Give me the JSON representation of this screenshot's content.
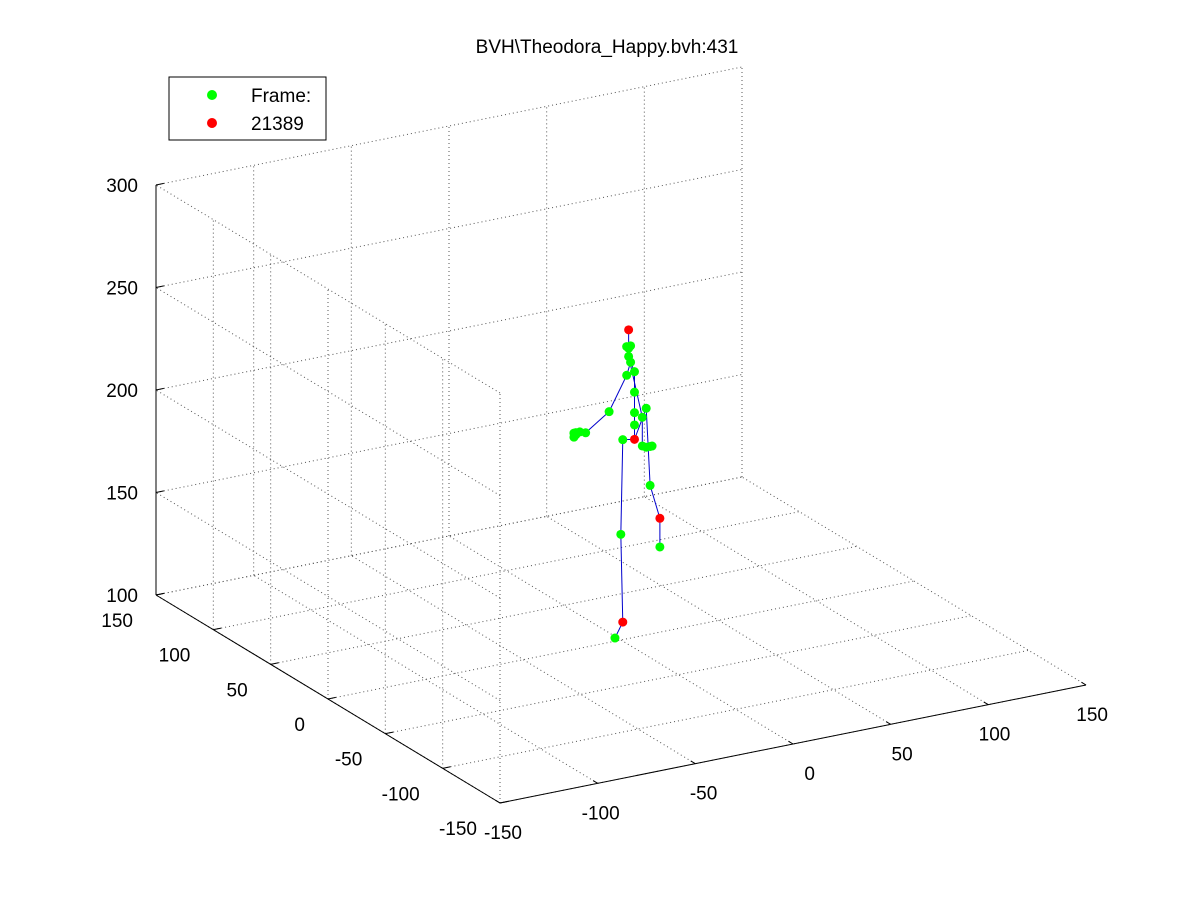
{
  "chart_data": {
    "type": "scatter",
    "title": "BVH\\Theodora_Happy.bvh:431",
    "legend": {
      "placement": "top-left",
      "entries": [
        {
          "label": "Frame:",
          "color": "#00ff00"
        },
        {
          "label": "21389",
          "color": "#ff0000"
        }
      ]
    },
    "z_ticks": [
      "100",
      "150",
      "200",
      "250",
      "300"
    ],
    "y_ticks": [
      "150",
      "100",
      "50",
      "0",
      "-50",
      "-100",
      "-150"
    ],
    "x_ticks": [
      "-150",
      "-100",
      "-50",
      "0",
      "50",
      "100",
      "150"
    ],
    "axis_ranges": {
      "x": [
        -150,
        150
      ],
      "y": [
        -150,
        150
      ],
      "z": [
        100,
        300
      ]
    },
    "grid": true,
    "colors": {
      "joint": "#00ff00",
      "end_site": "#ff0000",
      "bone": "#0000cc",
      "grid": "#555555"
    },
    "joints": [
      {
        "id": "head_top",
        "x": 45,
        "y": 70,
        "z": 219,
        "type": "end_site"
      },
      {
        "id": "head",
        "x": 45,
        "y": 70,
        "z": 210,
        "type": "joint"
      },
      {
        "id": "head_l",
        "x": 44,
        "y": 70,
        "z": 211,
        "type": "joint"
      },
      {
        "id": "head_r",
        "x": 46,
        "y": 70,
        "z": 211,
        "type": "joint"
      },
      {
        "id": "neck2",
        "x": 45,
        "y": 70,
        "z": 206,
        "type": "joint"
      },
      {
        "id": "neck",
        "x": 46,
        "y": 70,
        "z": 203,
        "type": "joint"
      },
      {
        "id": "chest3",
        "x": 48,
        "y": 70,
        "z": 198,
        "type": "joint"
      },
      {
        "id": "l_collar",
        "x": 44,
        "y": 70,
        "z": 197,
        "type": "joint"
      },
      {
        "id": "chest2",
        "x": 48,
        "y": 70,
        "z": 188,
        "type": "joint"
      },
      {
        "id": "chest",
        "x": 48,
        "y": 70,
        "z": 178,
        "type": "joint"
      },
      {
        "id": "spine",
        "x": 48,
        "y": 70,
        "z": 172,
        "type": "joint"
      },
      {
        "id": "hips",
        "x": 48,
        "y": 70,
        "z": 165,
        "type": "end_site"
      },
      {
        "id": "l_hip",
        "x": 42,
        "y": 70,
        "z": 166,
        "type": "joint"
      },
      {
        "id": "l_knee",
        "x": 41,
        "y": 70,
        "z": 120,
        "type": "joint"
      },
      {
        "id": "l_ankle",
        "x": 42,
        "y": 70,
        "z": 77,
        "type": "end_site"
      },
      {
        "id": "l_toe",
        "x": 38,
        "y": 70,
        "z": 70,
        "type": "joint"
      },
      {
        "id": "r_hip",
        "x": 54,
        "y": 70,
        "z": 179,
        "type": "joint"
      },
      {
        "id": "r_knee",
        "x": 56,
        "y": 70,
        "z": 141,
        "type": "joint"
      },
      {
        "id": "r_ankle",
        "x": 61,
        "y": 70,
        "z": 124,
        "type": "end_site"
      },
      {
        "id": "r_toe",
        "x": 61,
        "y": 70,
        "z": 110,
        "type": "joint"
      },
      {
        "id": "l_shoulder",
        "x": 35,
        "y": 70,
        "z": 181,
        "type": "joint"
      },
      {
        "id": "l_elbow",
        "x": 23,
        "y": 70,
        "z": 173,
        "type": "joint"
      },
      {
        "id": "l_wrist",
        "x": 20,
        "y": 70,
        "z": 174,
        "type": "joint"
      },
      {
        "id": "l_hand",
        "x": 18,
        "y": 70,
        "z": 173,
        "type": "joint"
      },
      {
        "id": "l_finger1",
        "x": 17,
        "y": 70,
        "z": 172,
        "type": "joint"
      },
      {
        "id": "l_finger2",
        "x": 18,
        "y": 70,
        "z": 174,
        "type": "joint"
      },
      {
        "id": "l_finger3",
        "x": 17,
        "y": 70,
        "z": 174,
        "type": "joint"
      },
      {
        "id": "r_shoulder",
        "x": 52,
        "y": 70,
        "z": 175,
        "type": "joint"
      },
      {
        "id": "r_elbow",
        "x": 52,
        "y": 70,
        "z": 161,
        "type": "joint"
      },
      {
        "id": "r_wrist",
        "x": 54,
        "y": 70,
        "z": 160,
        "type": "joint"
      },
      {
        "id": "r_hand",
        "x": 56,
        "y": 70,
        "z": 160,
        "type": "joint"
      },
      {
        "id": "r_finger",
        "x": 57,
        "y": 70,
        "z": 160,
        "type": "joint"
      }
    ]
  }
}
